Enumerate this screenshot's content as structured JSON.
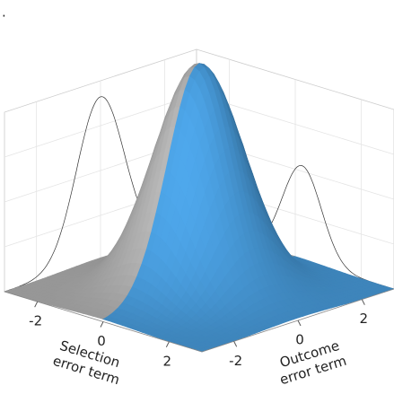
{
  "chart_data": {
    "type": "surface",
    "fragment": ".",
    "xlabel": [
      "Selection",
      "error term"
    ],
    "ylabel": [
      "Outcome",
      "error term"
    ],
    "xlim": [
      -3,
      3
    ],
    "ylim": [
      -3,
      3
    ],
    "xticks": [
      -2,
      0,
      2
    ],
    "yticks": [
      -2,
      0,
      2
    ],
    "colors": {
      "surface": "#b4b4b4",
      "selected": "#4a9fe0",
      "wall": "#e4e4e4",
      "curve": "#333333"
    },
    "grid": true
  }
}
